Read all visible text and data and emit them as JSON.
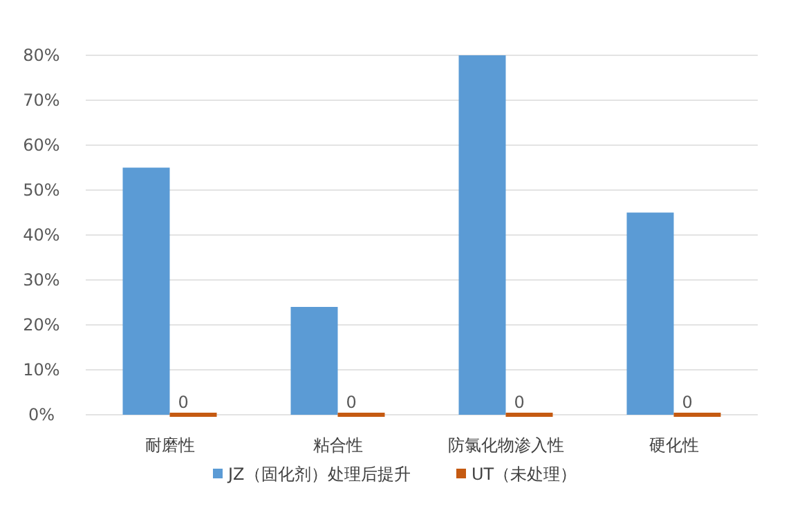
{
  "chart_data": {
    "type": "bar",
    "categories": [
      "耐磨性",
      "粘合性",
      "防氯化物渗入性",
      "硬化性"
    ],
    "series": [
      {
        "name": "JZ（固化剂）处理后提升",
        "color": "#5b9bd5",
        "values": [
          55,
          24,
          80,
          45
        ]
      },
      {
        "name": "UT（未处理）",
        "color": "#c55a11",
        "values": [
          0,
          0,
          0,
          0
        ],
        "value_labels": [
          "0",
          "0",
          "0",
          "0"
        ]
      }
    ],
    "ylim": [
      0,
      80
    ],
    "yticks": [
      {
        "value": 0,
        "label": "0%"
      },
      {
        "value": 10,
        "label": "10%"
      },
      {
        "value": 20,
        "label": "20%"
      },
      {
        "value": 30,
        "label": "30%"
      },
      {
        "value": 40,
        "label": "40%"
      },
      {
        "value": 50,
        "label": "50%"
      },
      {
        "value": 60,
        "label": "60%"
      },
      {
        "value": 70,
        "label": "70%"
      },
      {
        "value": 80,
        "label": "80%"
      }
    ],
    "grid": "y",
    "legend": "bottom"
  }
}
